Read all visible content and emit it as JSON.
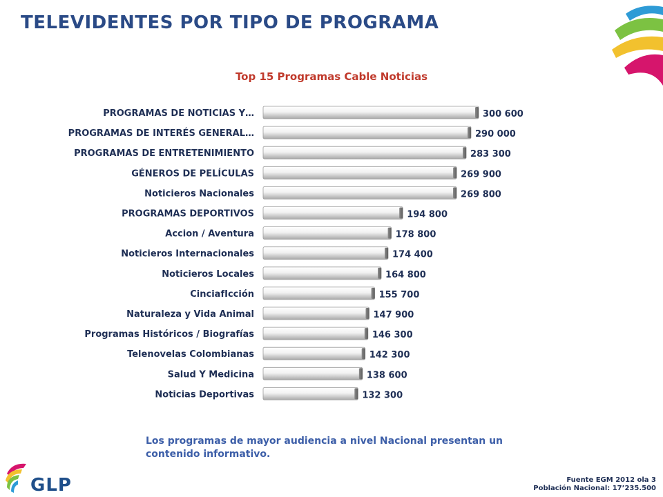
{
  "slide": {
    "title": "TELEVIDENTES POR TIPO DE PROGRAMA",
    "note": "Los programas de mayor audiencia a nivel Nacional presentan un contenido informativo.",
    "source_line1": "Fuente EGM 2012 ola 3",
    "source_line2": "Población Nacional: 17’235.500",
    "logo_text": "GLP"
  },
  "colors": {
    "title": "#2a4a86",
    "chart_title": "#c0392b",
    "labels": "#1f2f55",
    "note": "#3c5ea8",
    "bar_light": "#ffffff",
    "bar_dark": "#9a9a9a",
    "deco_blue": "#2e9bd6",
    "deco_green": "#7cc242",
    "deco_yellow": "#f2c12e",
    "deco_magenta": "#d6156c"
  },
  "chart_data": {
    "type": "bar",
    "orientation": "horizontal",
    "title": "Top 15 Programas Cable Noticias",
    "categories": [
      "PROGRAMAS DE NOTICIAS Y…",
      "PROGRAMAS DE INTERÉS GENERAL…",
      "PROGRAMAS DE ENTRETENIMIENTO",
      "GÉNEROS DE PELÍCULAS",
      "Noticieros Nacionales",
      "PROGRAMAS DEPORTIVOS",
      "Accion / Aventura",
      "Noticieros Internacionales",
      "Noticieros Locales",
      "CinciafIcción",
      "Naturaleza y Vida Animal",
      "Programas Históricos / Biografías",
      "Telenovelas Colombianas",
      "Salud Y Medicina",
      "Noticias Deportivas"
    ],
    "values": [
      300600,
      290000,
      283300,
      269900,
      269800,
      194800,
      178800,
      174400,
      164800,
      155700,
      147900,
      146300,
      142300,
      138600,
      132300
    ],
    "value_labels": [
      "300 600",
      "290 000",
      "283 300",
      "269 900",
      "269 800",
      "194 800",
      "178 800",
      "174 400",
      "164 800",
      "155 700",
      "147 900",
      "146 300",
      "142 300",
      "138 600",
      "132 300"
    ],
    "xlim": [
      0,
      300600
    ],
    "grid": false,
    "legend": "none"
  }
}
